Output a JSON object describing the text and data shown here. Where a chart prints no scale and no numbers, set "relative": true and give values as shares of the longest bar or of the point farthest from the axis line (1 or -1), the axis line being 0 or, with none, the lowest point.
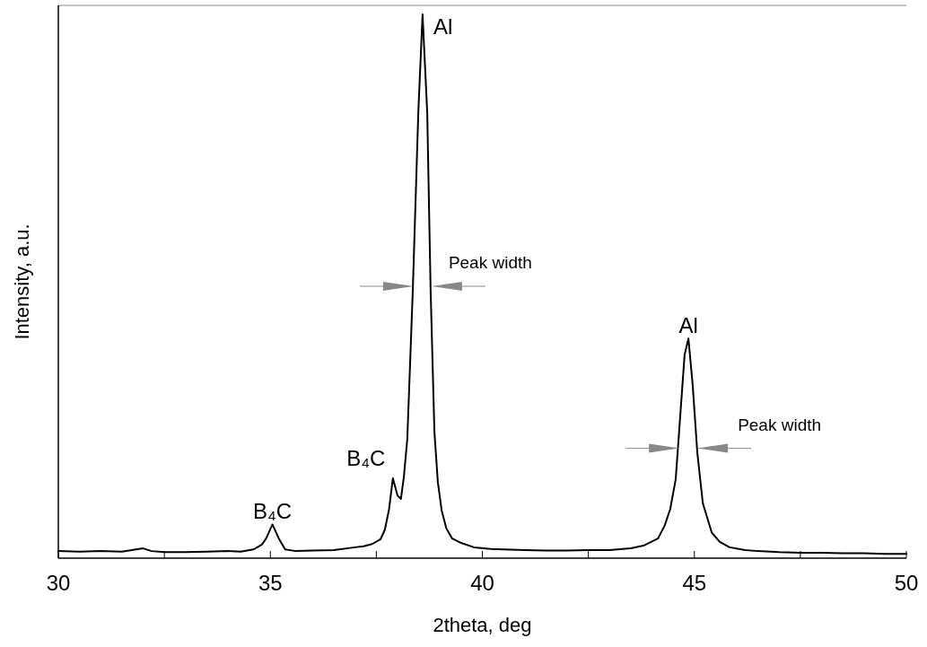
{
  "chart_data": {
    "type": "line",
    "xlabel": "2theta, deg",
    "ylabel": "Intensity, a.u.",
    "relative": true,
    "xlim": [
      30,
      50
    ],
    "xticks": [
      30,
      {
        "value": 32.5,
        "label": null
      },
      35,
      {
        "value": 37.5,
        "label": null
      },
      40,
      {
        "value": 42.5,
        "label": null
      },
      45,
      {
        "value": 47.5,
        "label": null
      },
      50
    ],
    "series": [
      {
        "color": "#000000",
        "x": [
          30,
          30.5,
          31,
          31.5,
          32,
          32.2,
          32.5,
          33,
          33.5,
          34,
          34.3,
          34.6,
          34.8,
          34.9,
          35.05,
          35.2,
          35.35,
          35.6,
          36,
          36.5,
          37,
          37.2,
          37.4,
          37.6,
          37.7,
          37.8,
          37.89,
          38.0,
          38.08,
          38.15,
          38.23,
          38.36,
          38.49,
          38.59,
          38.7,
          38.78,
          38.87,
          38.95,
          39.04,
          39.15,
          39.29,
          39.5,
          39.8,
          40.2,
          40.5,
          41,
          41.5,
          42,
          42.5,
          43,
          43.5,
          43.8,
          44.14,
          44.3,
          44.43,
          44.56,
          44.67,
          44.77,
          44.86,
          44.96,
          45.07,
          45.2,
          45.41,
          45.6,
          45.83,
          46.2,
          46.5,
          47,
          47.5,
          48,
          48.5,
          49,
          49.5,
          50
        ],
        "values": [
          0.013,
          0.012,
          0.013,
          0.012,
          0.018,
          0.013,
          0.011,
          0.011,
          0.012,
          0.013,
          0.012,
          0.016,
          0.025,
          0.036,
          0.062,
          0.036,
          0.016,
          0.013,
          0.014,
          0.015,
          0.02,
          0.022,
          0.026,
          0.035,
          0.052,
          0.09,
          0.147,
          0.115,
          0.109,
          0.15,
          0.219,
          0.493,
          0.82,
          1.0,
          0.82,
          0.493,
          0.232,
          0.14,
          0.088,
          0.055,
          0.036,
          0.028,
          0.02,
          0.017,
          0.016,
          0.015,
          0.014,
          0.014,
          0.015,
          0.015,
          0.018,
          0.023,
          0.036,
          0.06,
          0.09,
          0.145,
          0.265,
          0.374,
          0.404,
          0.319,
          0.194,
          0.101,
          0.047,
          0.03,
          0.02,
          0.015,
          0.013,
          0.011,
          0.01,
          0.01,
          0.009,
          0.009,
          0.008,
          0.008
        ]
      }
    ],
    "annotations": [
      {
        "text": "Al",
        "x": 38.59,
        "y": 1.0
      },
      {
        "text": "Al",
        "x": 44.86,
        "y": 0.404
      },
      {
        "text": "B₄C",
        "x": 35.05,
        "y": 0.062
      },
      {
        "text": "B₄C",
        "x": 37.89,
        "y": 0.147
      },
      "Peak width",
      "Peak width"
    ]
  }
}
